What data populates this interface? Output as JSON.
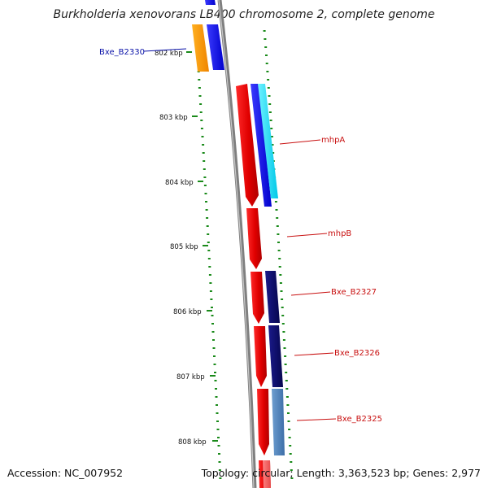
{
  "title": "Burkholderia xenovorans LB400 chromosome 2, complete genome",
  "footer": {
    "accession": "Accession: NC_007952",
    "stats": "Topology: circular; Length: 3,363,523 bp; Genes: 2,977"
  },
  "colors": {
    "backbone": "#8c8c8c",
    "tick": "#1a8a1a",
    "forward_label": "#0a12a8",
    "reverse_label": "#c81010"
  },
  "kbp_labels": [
    "802 kbp",
    "803 kbp",
    "804 kbp",
    "805 kbp",
    "806 kbp",
    "807 kbp",
    "808 kbp"
  ],
  "gene_labels": [
    {
      "id": "Bxe_B2330",
      "text": "Bxe_B2330",
      "color": "#0a12a8"
    },
    {
      "id": "mhpA",
      "text": "mhpA",
      "color": "#c81010"
    },
    {
      "id": "mhpB",
      "text": "mhpB",
      "color": "#c81010"
    },
    {
      "id": "Bxe_B2327",
      "text": "Bxe_B2327",
      "color": "#c81010"
    },
    {
      "id": "Bxe_B2326",
      "text": "Bxe_B2326",
      "color": "#c81010"
    },
    {
      "id": "Bxe_B2325",
      "text": "Bxe_B2325",
      "color": "#c81010"
    }
  ]
}
